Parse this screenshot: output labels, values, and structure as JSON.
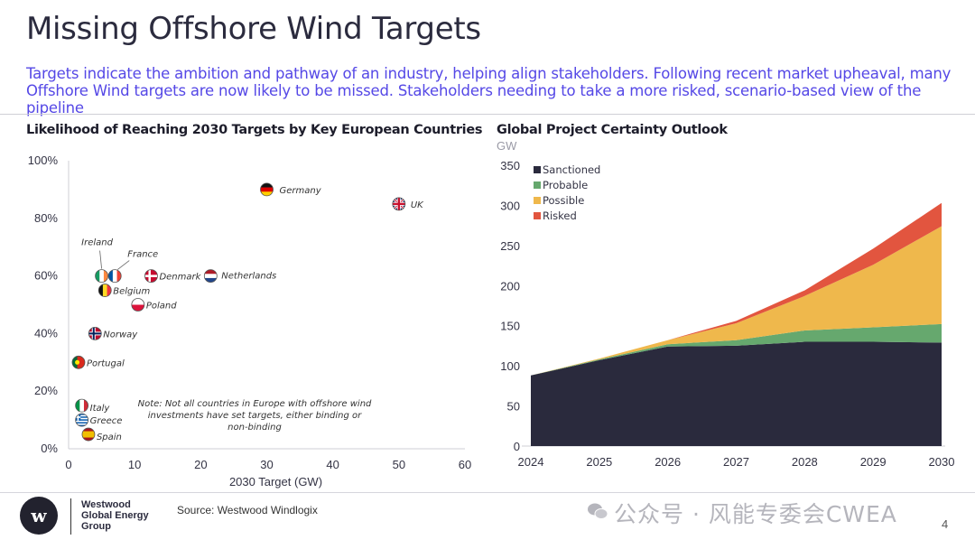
{
  "title": "Missing Offshore Wind Targets",
  "subtitle": "Targets indicate the ambition and pathway of an industry, helping align stakeholders. Following recent market upheaval, many Offshore Wind targets are now likely to be missed. Stakeholders needing to take a more risked, scenario-based view of the pipeline",
  "chart_data": [
    {
      "type": "scatter",
      "title": "Likelihood of Reaching 2030 Targets by Key European Countries",
      "xlabel": "2030 Target (GW)",
      "ylabel": "",
      "xlim": [
        0,
        60
      ],
      "ylim": [
        0,
        100
      ],
      "x_ticks": [
        "0",
        "10",
        "20",
        "30",
        "40",
        "50",
        "60"
      ],
      "y_ticks": [
        "0%",
        "20%",
        "40%",
        "60%",
        "80%",
        "100%"
      ],
      "grid": false,
      "points": [
        {
          "name": "Germany",
          "x": 30,
          "y": 90
        },
        {
          "name": "UK",
          "x": 50,
          "y": 85
        },
        {
          "name": "Ireland",
          "x": 5,
          "y": 60
        },
        {
          "name": "France",
          "x": 7,
          "y": 60
        },
        {
          "name": "Denmark",
          "x": 12.5,
          "y": 60
        },
        {
          "name": "Netherlands",
          "x": 21.5,
          "y": 60
        },
        {
          "name": "Belgium",
          "x": 5.5,
          "y": 55
        },
        {
          "name": "Poland",
          "x": 10.5,
          "y": 50
        },
        {
          "name": "Norway",
          "x": 4,
          "y": 40
        },
        {
          "name": "Portugal",
          "x": 1.5,
          "y": 30
        },
        {
          "name": "Italy",
          "x": 2,
          "y": 15
        },
        {
          "name": "Greece",
          "x": 2,
          "y": 10
        },
        {
          "name": "Spain",
          "x": 3,
          "y": 5
        }
      ],
      "note": "Note: Not all countries in Europe with offshore wind investments have set targets, either binding or non-binding"
    },
    {
      "type": "area",
      "title": "Global Project Certainty Outlook",
      "unit": "GW",
      "stacked": true,
      "x": [
        2024,
        2025,
        2026,
        2027,
        2028,
        2029,
        2030
      ],
      "x_ticks": [
        "2024",
        "2025",
        "2026",
        "2027",
        "2028",
        "2029",
        "2030"
      ],
      "y_ticks": [
        "0",
        "50",
        "100",
        "150",
        "200",
        "250",
        "300",
        "350"
      ],
      "ylim": [
        0,
        350
      ],
      "legend_position": "top-left",
      "series": [
        {
          "name": "Sanctioned",
          "color": "#2a2a3d",
          "values": [
            88,
            107,
            124,
            125,
            130,
            130,
            129
          ]
        },
        {
          "name": "Probable",
          "color": "#66a86e",
          "values": [
            0,
            1,
            3,
            7,
            14,
            18,
            23
          ]
        },
        {
          "name": "Possible",
          "color": "#efb84c",
          "values": [
            0,
            1,
            5,
            21,
            43,
            78,
            122
          ]
        },
        {
          "name": "Risked",
          "color": "#e2553f",
          "values": [
            0,
            0,
            0,
            3,
            7,
            20,
            29
          ]
        }
      ]
    }
  ],
  "footer": {
    "company_lines": [
      "Westwood",
      "Global Energy",
      "Group"
    ],
    "logo_letter": "w",
    "source": "Source: Westwood Windlogix",
    "watermark": "公众号 · 风能专委会CWEA",
    "page_number": "4"
  }
}
